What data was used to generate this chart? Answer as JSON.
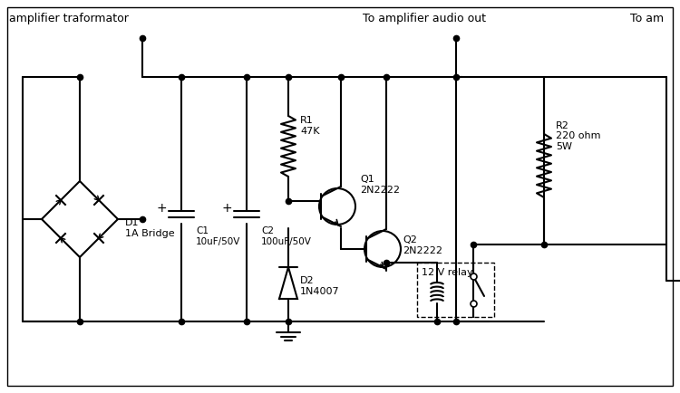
{
  "bg_color": "#ffffff",
  "lc": "black",
  "lw": 1.5,
  "title_left": "amplifier traformator",
  "title_center": "To amplifier audio out",
  "title_right": "To am",
  "labels": {
    "D1": "D1\n1A Bridge",
    "C1": "C1\n10uF/50V",
    "C2": "C2\n100uF/50V",
    "R1": "R1\n47K",
    "Q1": "Q1\n2N2222",
    "Q2": "Q2\n2N2222",
    "D2": "D2\n1N4007",
    "relay": "12 V relay",
    "R2": "R2\n220 ohm\n5W"
  }
}
